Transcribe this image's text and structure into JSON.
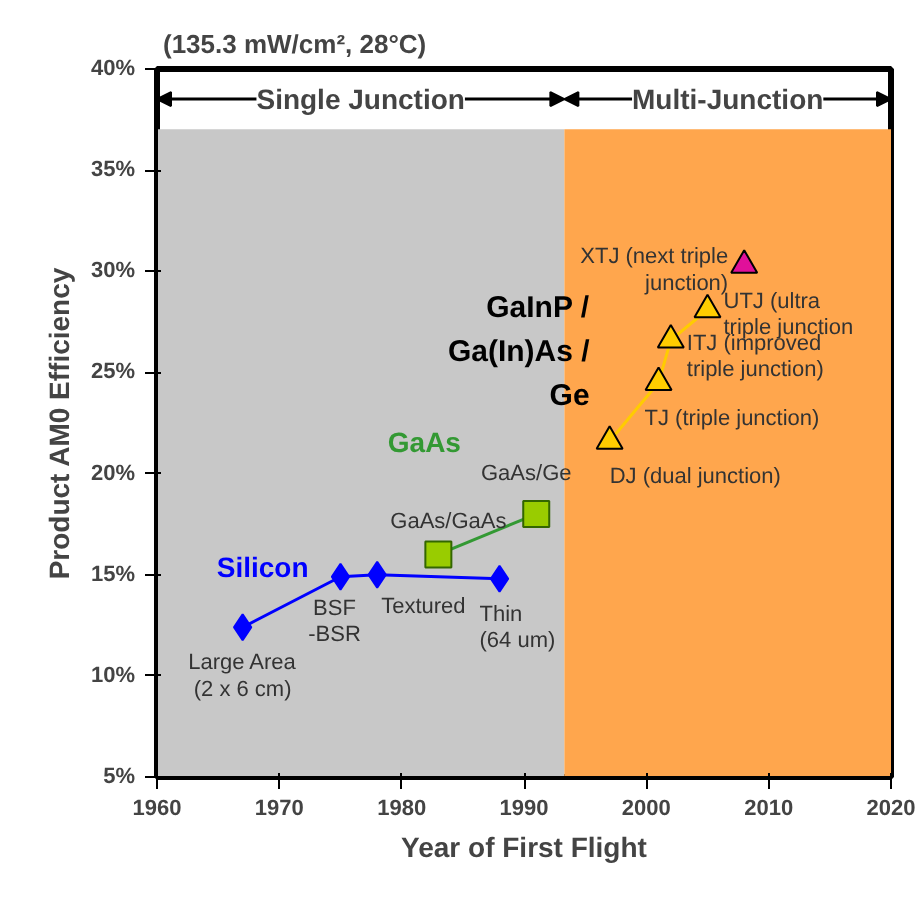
{
  "chart_data": {
    "type": "line",
    "subtitle": "(135.3 mW/cm², 28°C)",
    "xlabel": "Year of First Flight",
    "ylabel": "Product AM0 Efficiency",
    "xlim": [
      1960,
      2020
    ],
    "xticks": [
      1960,
      1970,
      1980,
      1990,
      2000,
      2010,
      2020
    ],
    "ylim": [
      5,
      40
    ],
    "yticks": [
      {
        "value": 5,
        "label": "5%"
      },
      {
        "value": 10,
        "label": "10%"
      },
      {
        "value": 15,
        "label": "15%"
      },
      {
        "value": 20,
        "label": "20%"
      },
      {
        "value": 25,
        "label": "25%"
      },
      {
        "value": 30,
        "label": "30%"
      },
      {
        "value": 35,
        "label": "35%"
      },
      {
        "value": 40,
        "label": "40%"
      }
    ],
    "grid": false,
    "line_style": "solid",
    "bands": [
      {
        "axis": "x",
        "from": 1960,
        "to": 1993.3,
        "label": "Single Junction",
        "color": "#c8c8c8"
      },
      {
        "axis": "x",
        "from": 1993.3,
        "to": 2020,
        "label": "Multi-Junction",
        "color": "#ffa64d"
      }
    ],
    "series": [
      {
        "name": "Silicon",
        "color": "#0000ff",
        "marker": "diamond",
        "x": [
          1967,
          1975,
          1978,
          1988
        ],
        "values": [
          12.4,
          14.9,
          15.0,
          14.8
        ]
      },
      {
        "name": "GaAs",
        "color": "#339933",
        "marker": "square",
        "x": [
          1983,
          1991
        ],
        "values": [
          16.0,
          18.0
        ]
      },
      {
        "name": "GaInP / Ga(In)As / Ge",
        "color": "#ffcc00",
        "marker": "triangle",
        "x": [
          1997,
          2001,
          2002,
          2005
        ],
        "values": [
          21.6,
          24.5,
          26.6,
          28.1
        ]
      },
      {
        "type": "scatter",
        "color": "#e0109a",
        "marker": "triangle",
        "x": [
          2008
        ],
        "values": [
          30.3
        ]
      }
    ],
    "annotations": [
      {
        "text": "Large Area\n(2 x 6 cm)",
        "x": 1967,
        "y": 12.4
      },
      {
        "text": "BSF\n-BSR",
        "x": 1975,
        "y": 14.9
      },
      {
        "text": "Textured",
        "x": 1978,
        "y": 15.0
      },
      {
        "text": "Thin\n(64 um)",
        "x": 1988,
        "y": 14.8
      },
      {
        "text": "GaAs/GaAs",
        "x": 1983,
        "y": 16.0
      },
      {
        "text": "GaAs/Ge",
        "x": 1991,
        "y": 18.0
      },
      {
        "text": "DJ (dual junction)",
        "x": 1997,
        "y": 21.6
      },
      {
        "text": "TJ (triple junction)",
        "x": 2001,
        "y": 24.5
      },
      {
        "text": "ITJ (improved\ntriple junction)",
        "x": 2002,
        "y": 26.6
      },
      {
        "text": "UTJ (ultra\ntriple junction",
        "x": 2005,
        "y": 28.1
      },
      {
        "text": "XTJ (next triple\njunction)",
        "x": 2008,
        "y": 30.3
      }
    ]
  }
}
